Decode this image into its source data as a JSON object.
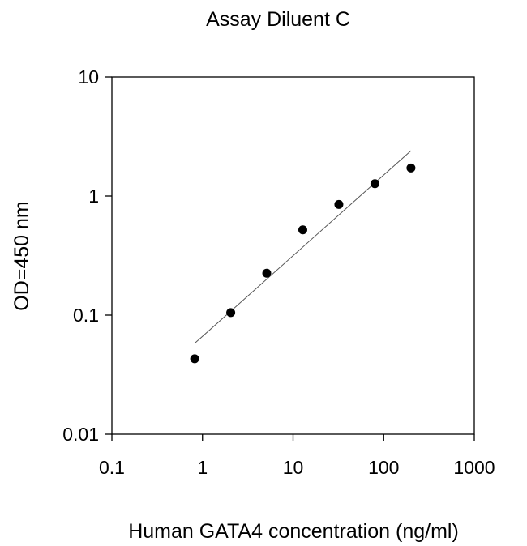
{
  "chart_data": {
    "type": "scatter",
    "title": "Assay Diluent C",
    "xlabel": "Human GATA4 concentration (ng/ml)",
    "ylabel": "OD=450 nm",
    "x_scale": "log",
    "y_scale": "log",
    "xlim": [
      0.1,
      1000
    ],
    "ylim": [
      0.01,
      10
    ],
    "x_ticks": [
      "0.1",
      "1",
      "10",
      "100",
      "1000"
    ],
    "y_ticks": [
      "0.01",
      "0.1",
      "1",
      "10"
    ],
    "grid": false,
    "series": [
      {
        "x": [
          0.82,
          2.05,
          5.12,
          12.8,
          32,
          80,
          200
        ],
        "y": [
          0.043,
          0.105,
          0.225,
          0.52,
          0.85,
          1.27,
          1.72
        ]
      }
    ],
    "fit_line": {
      "x": [
        0.82,
        200
      ],
      "y": [
        0.058,
        2.4
      ]
    },
    "colors": {
      "marker": "#000000",
      "fit_line": "#555555",
      "axes": "#000000"
    }
  }
}
